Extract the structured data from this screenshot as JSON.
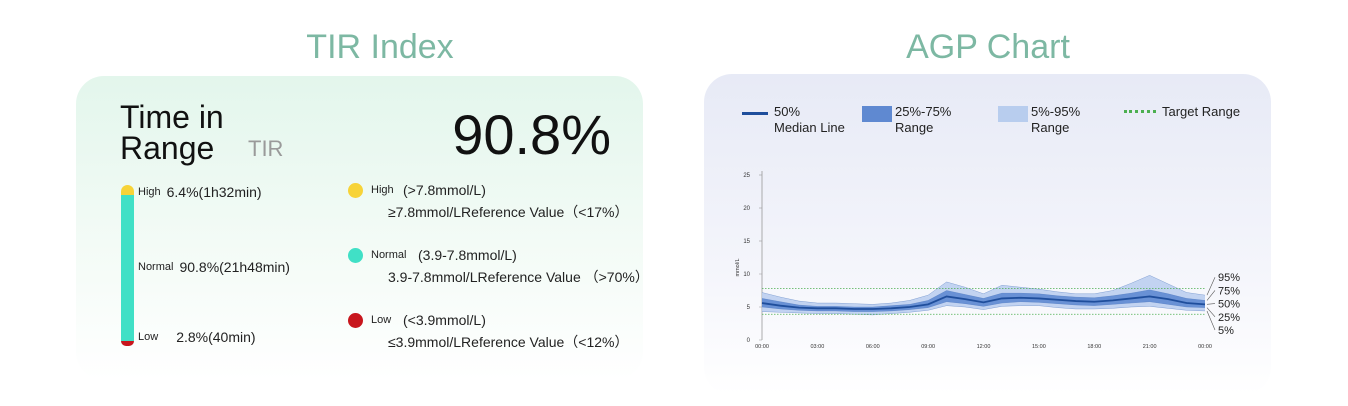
{
  "tir": {
    "heading": "TIR Index",
    "title": "Time in Range",
    "abbr": "TIR",
    "value": "90.8%",
    "levels": [
      {
        "name": "High",
        "percent": 6.4,
        "label": "6.4%(1h32min)",
        "range": "(>7.8mmol/L)",
        "reference": "≥7.8mmol/LReference Value（<17%）",
        "color": "#f7d338"
      },
      {
        "name": "Normal",
        "percent": 90.8,
        "label": "90.8%(21h48min)",
        "range": "(3.9-7.8mmol/L)",
        "reference": "3.9-7.8mmol/LReference Value （>70%）",
        "color": "#40e0c6"
      },
      {
        "name": "Low",
        "percent": 2.8,
        "label": "2.8%(40min)",
        "range": "(<3.9mmol/L)",
        "reference": "≤3.9mmol/LReference Value（<12%）",
        "color": "#c8161d"
      }
    ]
  },
  "agp": {
    "heading": "AGP Chart"
  },
  "chart_data": {
    "type": "line",
    "y_label": "mmol/L",
    "x": [
      0,
      1,
      2,
      3,
      4,
      5,
      6,
      7,
      8,
      9,
      10,
      11,
      12,
      13,
      14,
      15,
      16,
      17,
      18,
      19,
      20,
      21,
      22,
      23,
      24
    ],
    "xlim": [
      0,
      24
    ],
    "xticks": [
      {
        "value": 0,
        "label": "00:00"
      },
      {
        "value": 3,
        "label": "03:00"
      },
      {
        "value": 6,
        "label": "06:00"
      },
      {
        "value": 9,
        "label": "09:00"
      },
      {
        "value": 12,
        "label": "12:00"
      },
      {
        "value": 15,
        "label": "15:00"
      },
      {
        "value": 18,
        "label": "18:00"
      },
      {
        "value": 21,
        "label": "21:00"
      },
      {
        "value": 24,
        "label": "00:00"
      }
    ],
    "ylim": [
      0,
      25
    ],
    "yticks": [
      0,
      5,
      10,
      15,
      20,
      25
    ],
    "target_range": [
      3.9,
      7.8
    ],
    "target_color": "#4caf50",
    "legend": [
      {
        "name": "50%\nMedian Line",
        "color": "#1f4e9c"
      },
      {
        "name": "25%-75%\nRange",
        "color": "#5f89d1"
      },
      {
        "name": "5%-95%\nRange",
        "color": "#b8cdee"
      },
      {
        "name": "Target Range",
        "color": "#4caf50"
      }
    ],
    "series": [
      {
        "name": "5%",
        "color": "#b8cdee",
        "values": [
          4.3,
          4.2,
          4.1,
          4.0,
          4.0,
          3.9,
          3.8,
          4.0,
          4.2,
          4.5,
          5.2,
          5.0,
          4.6,
          5.1,
          5.2,
          5.2,
          4.9,
          4.7,
          4.7,
          4.8,
          5.0,
          5.1,
          4.8,
          4.5,
          4.4
        ]
      },
      {
        "name": "25%",
        "color": "#5f89d1",
        "values": [
          5.0,
          4.7,
          4.5,
          4.4,
          4.4,
          4.3,
          4.3,
          4.4,
          4.6,
          4.9,
          5.8,
          5.5,
          5.1,
          5.6,
          5.8,
          5.7,
          5.5,
          5.3,
          5.2,
          5.4,
          5.6,
          5.8,
          5.4,
          5.0,
          4.9
        ]
      },
      {
        "name": "50%",
        "color": "#1f4e9c",
        "values": [
          5.6,
          5.2,
          4.9,
          4.8,
          4.8,
          4.7,
          4.7,
          4.8,
          5.0,
          5.4,
          6.6,
          6.2,
          5.7,
          6.3,
          6.4,
          6.3,
          6.1,
          5.9,
          5.8,
          6.0,
          6.3,
          6.6,
          6.2,
          5.6,
          5.4
        ]
      },
      {
        "name": "75%",
        "color": "#5f89d1",
        "values": [
          6.3,
          5.8,
          5.3,
          5.1,
          5.1,
          5.0,
          5.0,
          5.2,
          5.4,
          6.0,
          7.5,
          6.9,
          6.3,
          7.1,
          7.1,
          7.0,
          6.7,
          6.5,
          6.4,
          6.7,
          7.1,
          7.6,
          7.0,
          6.3,
          6.0
        ]
      },
      {
        "name": "95%",
        "color": "#b8cdee",
        "values": [
          7.2,
          6.5,
          5.9,
          5.6,
          5.6,
          5.5,
          5.4,
          5.6,
          6.0,
          6.8,
          8.8,
          8.0,
          7.0,
          8.3,
          8.0,
          7.7,
          7.3,
          7.0,
          7.0,
          7.5,
          8.6,
          9.8,
          8.5,
          7.2,
          6.8
        ]
      }
    ]
  }
}
